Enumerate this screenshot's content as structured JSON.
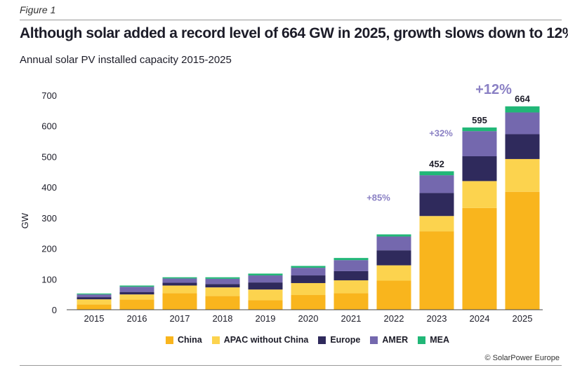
{
  "figure_label": "Figure 1",
  "title": "Although solar added a record level of 664 GW in 2025, growth slows down to 12%",
  "subtitle": "Annual solar PV installed capacity 2015-2025",
  "credit": "© SolarPower Europe",
  "colors": {
    "China": "#f9b51d",
    "APAC without China": "#fcd34e",
    "Europe": "#2f2a5c",
    "AMER": "#7468ae",
    "MEA": "#21b777",
    "growth_label": "#8a80c4"
  },
  "chart_data": {
    "type": "bar",
    "stacked": true,
    "categories": [
      "2015",
      "2016",
      "2017",
      "2018",
      "2019",
      "2020",
      "2021",
      "2022",
      "2023",
      "2024",
      "2025"
    ],
    "series": [
      {
        "name": "China",
        "values": [
          17,
          33,
          54,
          45,
          31,
          48,
          54,
          95,
          256,
          332,
          385
        ]
      },
      {
        "name": "APAC without China",
        "values": [
          17,
          17,
          25,
          28,
          35,
          39,
          42,
          50,
          50,
          88,
          107
        ]
      },
      {
        "name": "Europe",
        "values": [
          7,
          8,
          9,
          11,
          23,
          25,
          30,
          49,
          75,
          81,
          81
        ]
      },
      {
        "name": "AMER",
        "values": [
          9,
          17,
          14,
          17,
          23,
          25,
          36,
          45,
          58,
          82,
          71
        ]
      },
      {
        "name": "MEA",
        "values": [
          3,
          4,
          4,
          5,
          6,
          6,
          7,
          7,
          13,
          12,
          20
        ]
      }
    ],
    "totals": [
      {
        "category": "2023",
        "label": "452"
      },
      {
        "category": "2024",
        "label": "595"
      },
      {
        "category": "2025",
        "label": "664"
      }
    ],
    "growth": [
      {
        "category": "2022",
        "label": "+85%"
      },
      {
        "category": "2023",
        "label": "+32%"
      },
      {
        "category": "2024",
        "label": "+12%"
      }
    ],
    "ylabel": "GW",
    "xlabel": "",
    "ylim": [
      0,
      700
    ],
    "yticks": [
      0,
      100,
      200,
      300,
      400,
      500,
      600,
      700
    ],
    "grid": false,
    "legend_position": "bottom"
  }
}
